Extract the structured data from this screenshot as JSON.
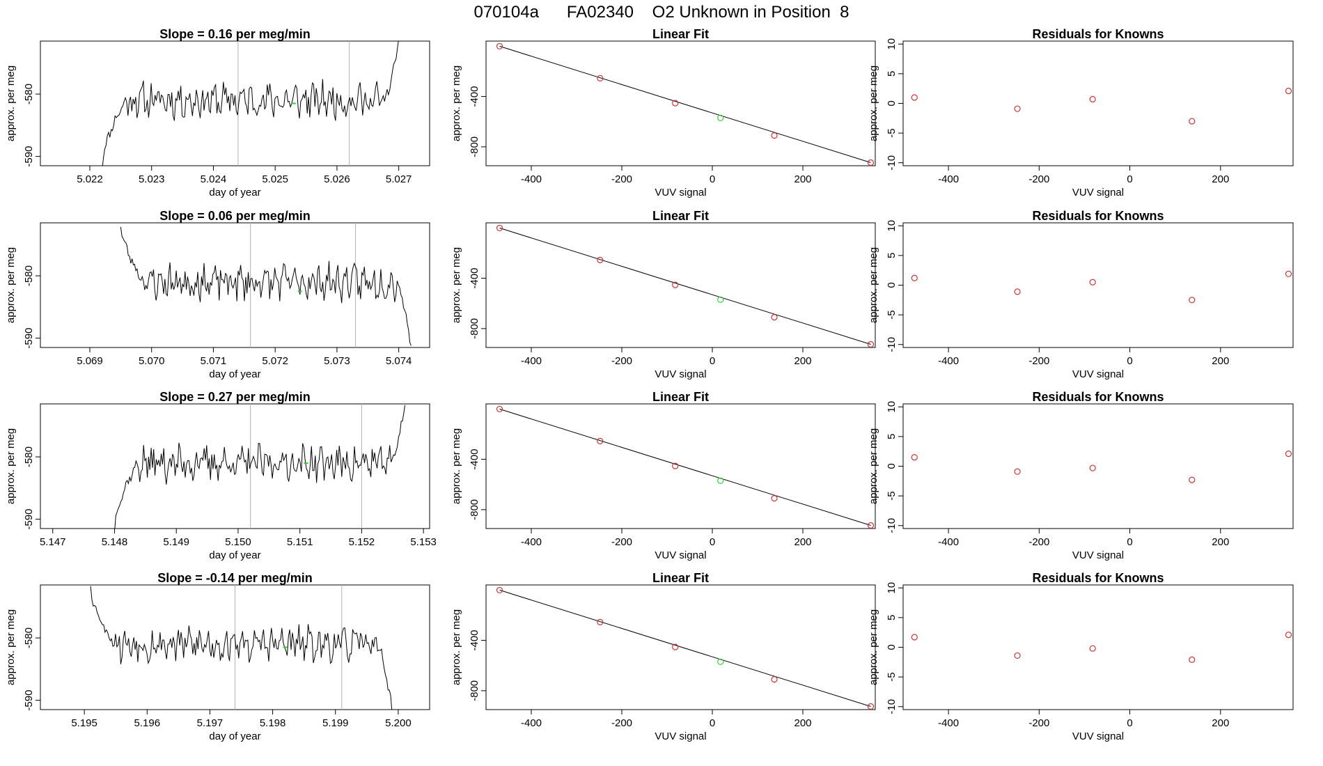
{
  "figure_title": "070104a      FA02340    O2 Unknown in Position  8",
  "chart_data": [
    {
      "row": 1,
      "col": 1,
      "type": "line",
      "title": "Slope =  0.16  per meg/min",
      "xlabel": "day of year",
      "ylabel": "approx. per meg",
      "xlim": [
        5.0212,
        5.0275
      ],
      "ylim": [
        -591.5,
        -571.5
      ],
      "xticks": [
        5.022,
        5.023,
        5.024,
        5.025,
        5.026,
        5.027
      ],
      "xtick_labels": [
        "5.022",
        "5.023",
        "5.024",
        "5.025",
        "5.026",
        "5.027"
      ],
      "yticks": [
        -580,
        -590
      ],
      "ytick_labels": [
        "-580",
        "-590"
      ],
      "vlines": [
        5.0244,
        5.0262
      ],
      "trace": {
        "x_start": 5.0222,
        "x_end": 5.027,
        "level": -581,
        "start_value": -591.5,
        "end_value": -571.5,
        "seed": 11
      },
      "marker": {
        "x": 5.0253,
        "y": -581.5,
        "color": "#33cc33"
      }
    },
    {
      "row": 1,
      "col": 2,
      "type": "scatter",
      "title": "Linear Fit",
      "xlabel": "VUV signal",
      "ylabel": "approx. per meg",
      "xlim": [
        -500,
        360
      ],
      "ylim": [
        -950,
        40
      ],
      "xticks": [
        -400,
        -200,
        0,
        200
      ],
      "xtick_labels": [
        "-400",
        "-200",
        "0",
        "200"
      ],
      "yticks": [
        -400,
        -800
      ],
      "ytick_labels": [
        "-400",
        "-800"
      ],
      "points_x": [
        -470,
        -248,
        -82,
        137,
        350
      ],
      "points_y": [
        -1,
        -255,
        -453,
        -710,
        -925
      ],
      "point_color": "#cc3333",
      "unknown": {
        "x": 18,
        "y": -570,
        "color": "#33cc33"
      },
      "fit_line": {
        "x": [
          -470,
          350
        ],
        "y": [
          -1,
          -925
        ]
      }
    },
    {
      "row": 1,
      "col": 3,
      "type": "scatter",
      "title": "Residuals for Knowns",
      "xlabel": "VUV signal",
      "ylabel": "approx. per meg",
      "xlim": [
        -500,
        360
      ],
      "ylim": [
        -10.5,
        10.5
      ],
      "xticks": [
        -400,
        -200,
        0,
        200
      ],
      "xtick_labels": [
        "-400",
        "-200",
        "0",
        "200"
      ],
      "yticks": [
        10,
        5,
        0,
        -5,
        -10
      ],
      "ytick_labels": [
        "10",
        "5",
        "0",
        "-5",
        "-10"
      ],
      "points_x": [
        -475,
        -248,
        -82,
        137,
        350
      ],
      "points_y": [
        1.0,
        -0.9,
        0.7,
        -3.0,
        2.1
      ],
      "point_color": "#cc3333"
    },
    {
      "row": 2,
      "col": 1,
      "type": "line",
      "title": "Slope =  0.06  per meg/min",
      "xlabel": "day of year",
      "ylabel": "approx. per meg",
      "xlim": [
        5.0682,
        5.0745
      ],
      "ylim": [
        -591.5,
        -571.5
      ],
      "xticks": [
        5.069,
        5.07,
        5.071,
        5.072,
        5.073,
        5.074
      ],
      "xtick_labels": [
        "5.069",
        "5.070",
        "5.071",
        "5.072",
        "5.073",
        "5.074"
      ],
      "yticks": [
        -580,
        -590
      ],
      "ytick_labels": [
        "-580",
        "-590"
      ],
      "vlines": [
        5.0716,
        5.0733
      ],
      "trace": {
        "x_start": 5.0695,
        "x_end": 5.0742,
        "level": -581,
        "start_value": -571.5,
        "end_value": -591.5,
        "seed": 23
      },
      "marker": {
        "x": 5.0724,
        "y": -582.5,
        "color": "#33cc33"
      }
    },
    {
      "row": 2,
      "col": 2,
      "type": "scatter",
      "title": "Linear Fit",
      "xlabel": "VUV signal",
      "ylabel": "approx. per meg",
      "xlim": [
        -500,
        360
      ],
      "ylim": [
        -950,
        40
      ],
      "xticks": [
        -400,
        -200,
        0,
        200
      ],
      "xtick_labels": [
        "-400",
        "-200",
        "0",
        "200"
      ],
      "yticks": [
        -400,
        -800
      ],
      "ytick_labels": [
        "-400",
        "-800"
      ],
      "points_x": [
        -470,
        -248,
        -82,
        137,
        350
      ],
      "points_y": [
        -1,
        -255,
        -453,
        -710,
        -925
      ],
      "point_color": "#cc3333",
      "unknown": {
        "x": 18,
        "y": -570,
        "color": "#33cc33"
      },
      "fit_line": {
        "x": [
          -470,
          350
        ],
        "y": [
          -1,
          -925
        ]
      }
    },
    {
      "row": 2,
      "col": 3,
      "type": "scatter",
      "title": "Residuals for Knowns",
      "xlabel": "VUV signal",
      "ylabel": "approx. per meg",
      "xlim": [
        -500,
        360
      ],
      "ylim": [
        -10.5,
        10.5
      ],
      "xticks": [
        -400,
        -200,
        0,
        200
      ],
      "xtick_labels": [
        "-400",
        "-200",
        "0",
        "200"
      ],
      "yticks": [
        10,
        5,
        0,
        -5,
        -10
      ],
      "ytick_labels": [
        "10",
        "5",
        "0",
        "-5",
        "-10"
      ],
      "points_x": [
        -475,
        -248,
        -82,
        137,
        350
      ],
      "points_y": [
        1.2,
        -1.1,
        0.5,
        -2.5,
        1.9
      ],
      "point_color": "#cc3333"
    },
    {
      "row": 3,
      "col": 1,
      "type": "line",
      "title": "Slope =  0.27  per meg/min",
      "xlabel": "day of year",
      "ylabel": "approx. per meg",
      "xlim": [
        5.1468,
        5.1531
      ],
      "ylim": [
        -591.5,
        -571.5
      ],
      "xticks": [
        5.147,
        5.148,
        5.149,
        5.15,
        5.151,
        5.152,
        5.153
      ],
      "xtick_labels": [
        "5.147",
        "5.148",
        "5.149",
        "5.150",
        "5.151",
        "5.152",
        "5.153"
      ],
      "yticks": [
        -580,
        -590
      ],
      "ytick_labels": [
        "-580",
        "-590"
      ],
      "vlines": [
        5.1502,
        5.152
      ],
      "trace": {
        "x_start": 5.148,
        "x_end": 5.1527,
        "level": -581,
        "start_value": -591.5,
        "end_value": -571.5,
        "seed": 37
      },
      "marker": {
        "x": 5.1511,
        "y": -581,
        "color": "#33cc33"
      }
    },
    {
      "row": 3,
      "col": 2,
      "type": "scatter",
      "title": "Linear Fit",
      "xlabel": "VUV signal",
      "ylabel": "approx. per meg",
      "xlim": [
        -500,
        360
      ],
      "ylim": [
        -950,
        40
      ],
      "xticks": [
        -400,
        -200,
        0,
        200
      ],
      "xtick_labels": [
        "-400",
        "-200",
        "0",
        "200"
      ],
      "yticks": [
        -400,
        -800
      ],
      "ytick_labels": [
        "-400",
        "-800"
      ],
      "points_x": [
        -470,
        -248,
        -82,
        137,
        350
      ],
      "points_y": [
        -1,
        -255,
        -453,
        -710,
        -925
      ],
      "point_color": "#cc3333",
      "unknown": {
        "x": 18,
        "y": -570,
        "color": "#33cc33"
      },
      "fit_line": {
        "x": [
          -470,
          350
        ],
        "y": [
          -1,
          -925
        ]
      }
    },
    {
      "row": 3,
      "col": 3,
      "type": "scatter",
      "title": "Residuals for Knowns",
      "xlabel": "VUV signal",
      "ylabel": "approx. per meg",
      "xlim": [
        -500,
        360
      ],
      "ylim": [
        -10.5,
        10.5
      ],
      "xticks": [
        -400,
        -200,
        0,
        200
      ],
      "xtick_labels": [
        "-400",
        "-200",
        "0",
        "200"
      ],
      "yticks": [
        10,
        5,
        0,
        -5,
        -10
      ],
      "ytick_labels": [
        "10",
        "5",
        "0",
        "-5",
        "-10"
      ],
      "points_x": [
        -475,
        -248,
        -82,
        137,
        350
      ],
      "points_y": [
        1.5,
        -0.9,
        -0.3,
        -2.3,
        2.1
      ],
      "point_color": "#cc3333"
    },
    {
      "row": 4,
      "col": 1,
      "type": "line",
      "title": "Slope =  -0.14  per meg/min",
      "xlabel": "day of year",
      "ylabel": "approx. per meg",
      "xlim": [
        5.1943,
        5.2005
      ],
      "ylim": [
        -591.5,
        -571.5
      ],
      "xticks": [
        5.195,
        5.196,
        5.197,
        5.198,
        5.199,
        5.2
      ],
      "xtick_labels": [
        "5.195",
        "5.196",
        "5.197",
        "5.198",
        "5.199",
        "5.200"
      ],
      "yticks": [
        -580,
        -590
      ],
      "ytick_labels": [
        "-580",
        "-590"
      ],
      "vlines": [
        5.1974,
        5.1991
      ],
      "trace": {
        "x_start": 5.1951,
        "x_end": 5.1999,
        "level": -581,
        "start_value": -571.5,
        "end_value": -591.5,
        "seed": 53
      },
      "marker": {
        "x": 5.1982,
        "y": -581.5,
        "color": "#33cc33"
      }
    },
    {
      "row": 4,
      "col": 2,
      "type": "scatter",
      "title": "Linear Fit",
      "xlabel": "VUV signal",
      "ylabel": "approx. per meg",
      "xlim": [
        -500,
        360
      ],
      "ylim": [
        -950,
        40
      ],
      "xticks": [
        -400,
        -200,
        0,
        200
      ],
      "xtick_labels": [
        "-400",
        "-200",
        "0",
        "200"
      ],
      "yticks": [
        -400,
        -800
      ],
      "ytick_labels": [
        "-400",
        "-800"
      ],
      "points_x": [
        -470,
        -248,
        -82,
        137,
        350
      ],
      "points_y": [
        -1,
        -255,
        -453,
        -710,
        -925
      ],
      "point_color": "#cc3333",
      "unknown": {
        "x": 18,
        "y": -570,
        "color": "#33cc33"
      },
      "fit_line": {
        "x": [
          -470,
          350
        ],
        "y": [
          -1,
          -925
        ]
      }
    },
    {
      "row": 4,
      "col": 3,
      "type": "scatter",
      "title": "Residuals for Knowns",
      "xlabel": "VUV signal",
      "ylabel": "approx. per meg",
      "xlim": [
        -500,
        360
      ],
      "ylim": [
        -10.5,
        10.5
      ],
      "xticks": [
        -400,
        -200,
        0,
        200
      ],
      "xtick_labels": [
        "-400",
        "-200",
        "0",
        "200"
      ],
      "yticks": [
        10,
        5,
        0,
        -5,
        -10
      ],
      "ytick_labels": [
        "10",
        "5",
        "0",
        "-5",
        "-10"
      ],
      "points_x": [
        -475,
        -248,
        -82,
        137,
        350
      ],
      "points_y": [
        1.7,
        -1.4,
        -0.2,
        -2.1,
        2.1
      ],
      "point_color": "#cc3333"
    }
  ]
}
